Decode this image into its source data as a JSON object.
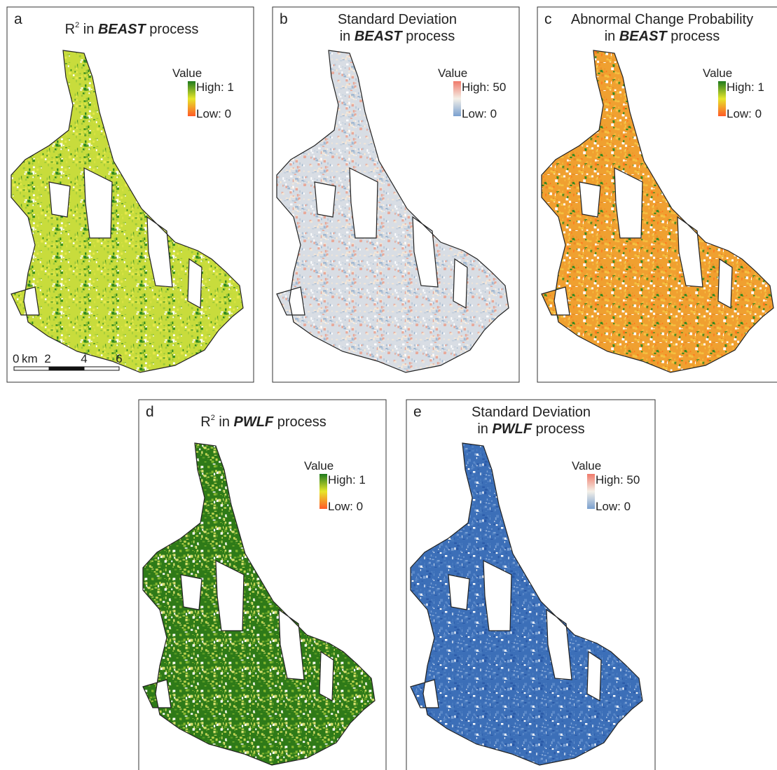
{
  "panels": [
    {
      "letter": "a",
      "title": [
        [
          {
            "text": "R"
          },
          {
            "text": "2",
            "format": "sup"
          },
          {
            "text": " in "
          },
          {
            "text": "BEAST",
            "format": "bold-italic"
          },
          {
            "text": " process"
          }
        ]
      ],
      "legend": {
        "heading": "Value",
        "high": "High: 1",
        "low": "Low: 0",
        "colors": [
          "#1e7a1e",
          "#e6e62a",
          "#ff5a28"
        ]
      },
      "scale_bar": {
        "labels": [
          "0",
          "km",
          "2",
          "4",
          "6"
        ]
      }
    },
    {
      "letter": "b",
      "title": [
        [
          {
            "text": "Standard  Deviation"
          }
        ],
        [
          {
            "text": "in  "
          },
          {
            "text": "BEAST",
            "format": "bold-italic"
          },
          {
            "text": "  process"
          }
        ]
      ],
      "legend": {
        "heading": "Value",
        "high": "High: 50",
        "low": "Low: 0",
        "colors": [
          "#f07a6a",
          "#f4f0e8",
          "#7aa0d0"
        ]
      }
    },
    {
      "letter": "c",
      "title": [
        [
          {
            "text": "Abnormal Change Probability"
          }
        ],
        [
          {
            "text": "in  "
          },
          {
            "text": "BEAST",
            "format": "bold-italic"
          },
          {
            "text": "  process"
          }
        ]
      ],
      "legend": {
        "heading": "Value",
        "high": "High: 1",
        "low": "Low: 0",
        "colors": [
          "#1e7a1e",
          "#e6e62a",
          "#ff5a28"
        ]
      }
    },
    {
      "letter": "d",
      "title": [
        [
          {
            "text": "R"
          },
          {
            "text": "2",
            "format": "sup"
          },
          {
            "text": " in "
          },
          {
            "text": "PWLF",
            "format": "bold-italic"
          },
          {
            "text": " process"
          }
        ]
      ],
      "legend": {
        "heading": "Value",
        "high": "High: 1",
        "low": "Low: 0",
        "colors": [
          "#1e7a1e",
          "#e6e62a",
          "#ff5a28"
        ]
      }
    },
    {
      "letter": "e",
      "title": [
        [
          {
            "text": "Standard  Deviation"
          }
        ],
        [
          {
            "text": "in  "
          },
          {
            "text": "PWLF",
            "format": "bold-italic"
          },
          {
            "text": "  process"
          }
        ]
      ],
      "legend": {
        "heading": "Value",
        "high": "High: 50",
        "low": "Low: 0",
        "colors": [
          "#f07a6a",
          "#f4f0e8",
          "#7aa0d0"
        ]
      }
    }
  ]
}
